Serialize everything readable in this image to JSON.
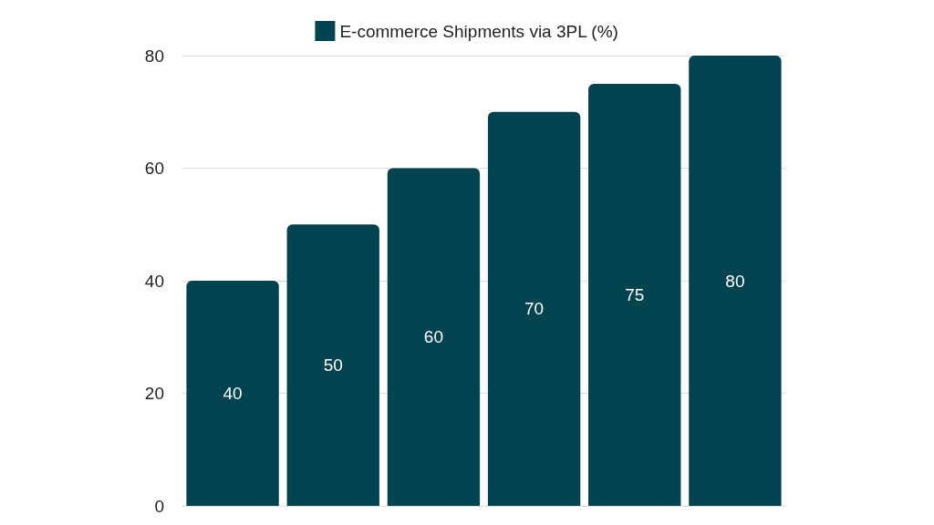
{
  "chart_data": {
    "type": "bar",
    "categories": [
      null,
      null,
      null,
      null,
      null,
      null
    ],
    "series": [
      {
        "name": "E-commerce Shipments via 3PL (%)",
        "color": "#01444f",
        "values": [
          40,
          50,
          60,
          70,
          75,
          80
        ]
      }
    ],
    "ylim": [
      0,
      80
    ],
    "yticks": [
      0,
      20,
      40,
      60,
      80
    ],
    "grid": "y",
    "legend": "top",
    "data_labels": true
  }
}
